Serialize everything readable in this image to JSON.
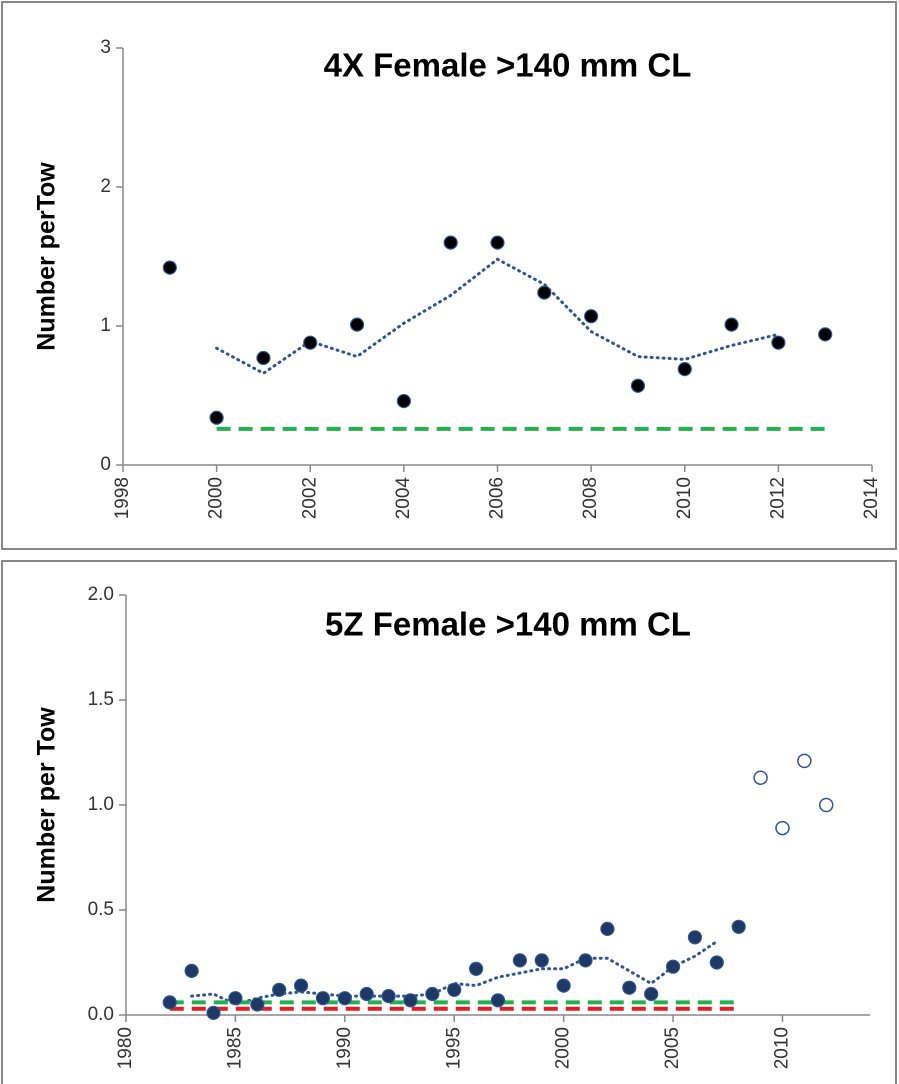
{
  "chart_data": [
    {
      "type": "scatter",
      "title": "4X Female >140 mm CL",
      "y_label": "Number perTow",
      "xlim": [
        1998,
        2014
      ],
      "xticks": [
        1998,
        2000,
        2002,
        2004,
        2006,
        2008,
        2010,
        2012,
        2014
      ],
      "ylim": [
        0,
        3
      ],
      "yticks": [
        0,
        1,
        2,
        3
      ],
      "series": [
        {
          "x": [
            1999,
            2000,
            2001,
            2002,
            2003,
            2004,
            2005,
            2006,
            2007,
            2008,
            2009,
            2010,
            2011,
            2012,
            2013
          ],
          "values": [
            1.42,
            0.34,
            0.77,
            0.88,
            1.01,
            0.46,
            1.6,
            1.6,
            1.24,
            1.07,
            0.57,
            0.69,
            1.01,
            0.88,
            0.94
          ],
          "color": "#000000",
          "marker": "filled",
          "line_style": "none"
        },
        {
          "x": [
            2000,
            2001,
            2002,
            2003,
            2004,
            2005,
            2006,
            2007,
            2008,
            2009,
            2010,
            2011,
            2012
          ],
          "values": [
            0.84,
            0.66,
            0.89,
            0.78,
            1.02,
            1.22,
            1.48,
            1.3,
            0.96,
            0.78,
            0.76,
            0.86,
            0.94
          ],
          "color": "#2f5597",
          "marker": "none",
          "line_style": "dotted"
        },
        {
          "x": [
            2000,
            2013
          ],
          "values": [
            0.26,
            0.26
          ],
          "color": "#22b14c",
          "marker": "none",
          "line_style": "dashed"
        }
      ]
    },
    {
      "type": "scatter",
      "title": "5Z Female >140 mm CL",
      "y_label": "Number per Tow",
      "xlim": [
        1980,
        2014
      ],
      "xticks": [
        1980,
        1985,
        1990,
        1995,
        2000,
        2005,
        2010
      ],
      "ylim": [
        0,
        2
      ],
      "yticks": [
        {
          "value": 0,
          "label": "0.0"
        },
        0.5,
        {
          "value": 1,
          "label": "1.0"
        },
        1.5,
        {
          "value": 2,
          "label": "2.0"
        }
      ],
      "series": [
        {
          "x": [
            1982,
            1983,
            1984,
            1985,
            1986,
            1987,
            1988,
            1989,
            1990,
            1991,
            1992,
            1993,
            1994,
            1995,
            1996,
            1997,
            1998,
            1999,
            2000,
            2001,
            2002,
            2003,
            2004,
            2005,
            2006,
            2007,
            2008
          ],
          "values": [
            0.06,
            0.21,
            0.01,
            0.08,
            0.05,
            0.12,
            0.14,
            0.08,
            0.08,
            0.1,
            0.09,
            0.07,
            0.1,
            0.12,
            0.22,
            0.07,
            0.26,
            0.26,
            0.14,
            0.26,
            0.41,
            0.13,
            0.1,
            0.23,
            0.37,
            0.25,
            0.42
          ],
          "color": "#1f3864",
          "marker": "filled",
          "line_style": "none"
        },
        {
          "x": [
            2009,
            2010,
            2011,
            2012
          ],
          "values": [
            1.13,
            0.89,
            1.21,
            1.0
          ],
          "color": "#2f5597",
          "marker": "open",
          "line_style": "none"
        },
        {
          "x": [
            1983,
            1984,
            1985,
            1986,
            1987,
            1988,
            1989,
            1990,
            1991,
            1992,
            1993,
            1994,
            1995,
            1996,
            1997,
            1998,
            1999,
            2000,
            2001,
            2002,
            2003,
            2004,
            2005,
            2006,
            2007
          ],
          "values": [
            0.09,
            0.1,
            0.05,
            0.08,
            0.1,
            0.11,
            0.1,
            0.09,
            0.09,
            0.09,
            0.09,
            0.1,
            0.15,
            0.14,
            0.18,
            0.2,
            0.22,
            0.22,
            0.27,
            0.27,
            0.21,
            0.15,
            0.23,
            0.28,
            0.35
          ],
          "color": "#2f5597",
          "marker": "none",
          "line_style": "dotted"
        },
        {
          "x": [
            1982,
            2008
          ],
          "values": [
            0.06,
            0.06
          ],
          "color": "#22b14c",
          "marker": "none",
          "line_style": "dashed"
        },
        {
          "x": [
            1982,
            2008
          ],
          "values": [
            0.03,
            0.03
          ],
          "color": "#e51c23",
          "marker": "none",
          "line_style": "dashed"
        }
      ]
    }
  ]
}
